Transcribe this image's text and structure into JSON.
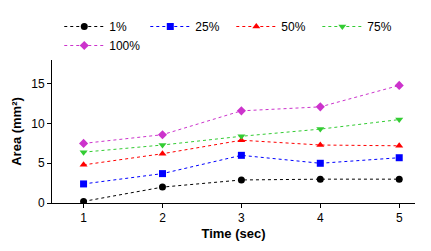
{
  "chart_data": {
    "type": "line",
    "x_label": "Time (sec)",
    "y_label": "Area (mm²)",
    "x": [
      1,
      2,
      3,
      4,
      5
    ],
    "series": [
      {
        "name": "1%",
        "color": "#000000",
        "marker": "circle",
        "line_style": "dot",
        "values": [
          0.2,
          2.0,
          2.9,
          3.0,
          3.0
        ]
      },
      {
        "name": "25%",
        "color": "#0000ff",
        "marker": "square",
        "line_style": "dot",
        "values": [
          2.4,
          3.7,
          6.0,
          5.0,
          5.7
        ]
      },
      {
        "name": "50%",
        "color": "#ff0000",
        "marker": "triangle-up",
        "line_style": "dot",
        "values": [
          4.8,
          6.2,
          7.9,
          7.3,
          7.2
        ]
      },
      {
        "name": "75%",
        "color": "#33cc33",
        "marker": "triangle-down",
        "line_style": "dot",
        "values": [
          6.4,
          7.3,
          8.4,
          9.3,
          10.5
        ]
      },
      {
        "name": "100%",
        "color": "#cc33cc",
        "marker": "diamond",
        "line_style": "dot",
        "values": [
          7.5,
          8.6,
          11.6,
          12.1,
          14.8
        ]
      }
    ],
    "xlim": [
      0.6,
      5.2
    ],
    "xticks": [
      1,
      2,
      3,
      4,
      5
    ],
    "ylim": [
      0,
      18
    ],
    "yticks": [
      0,
      5,
      10,
      15
    ],
    "grid": false,
    "legend": "top"
  }
}
